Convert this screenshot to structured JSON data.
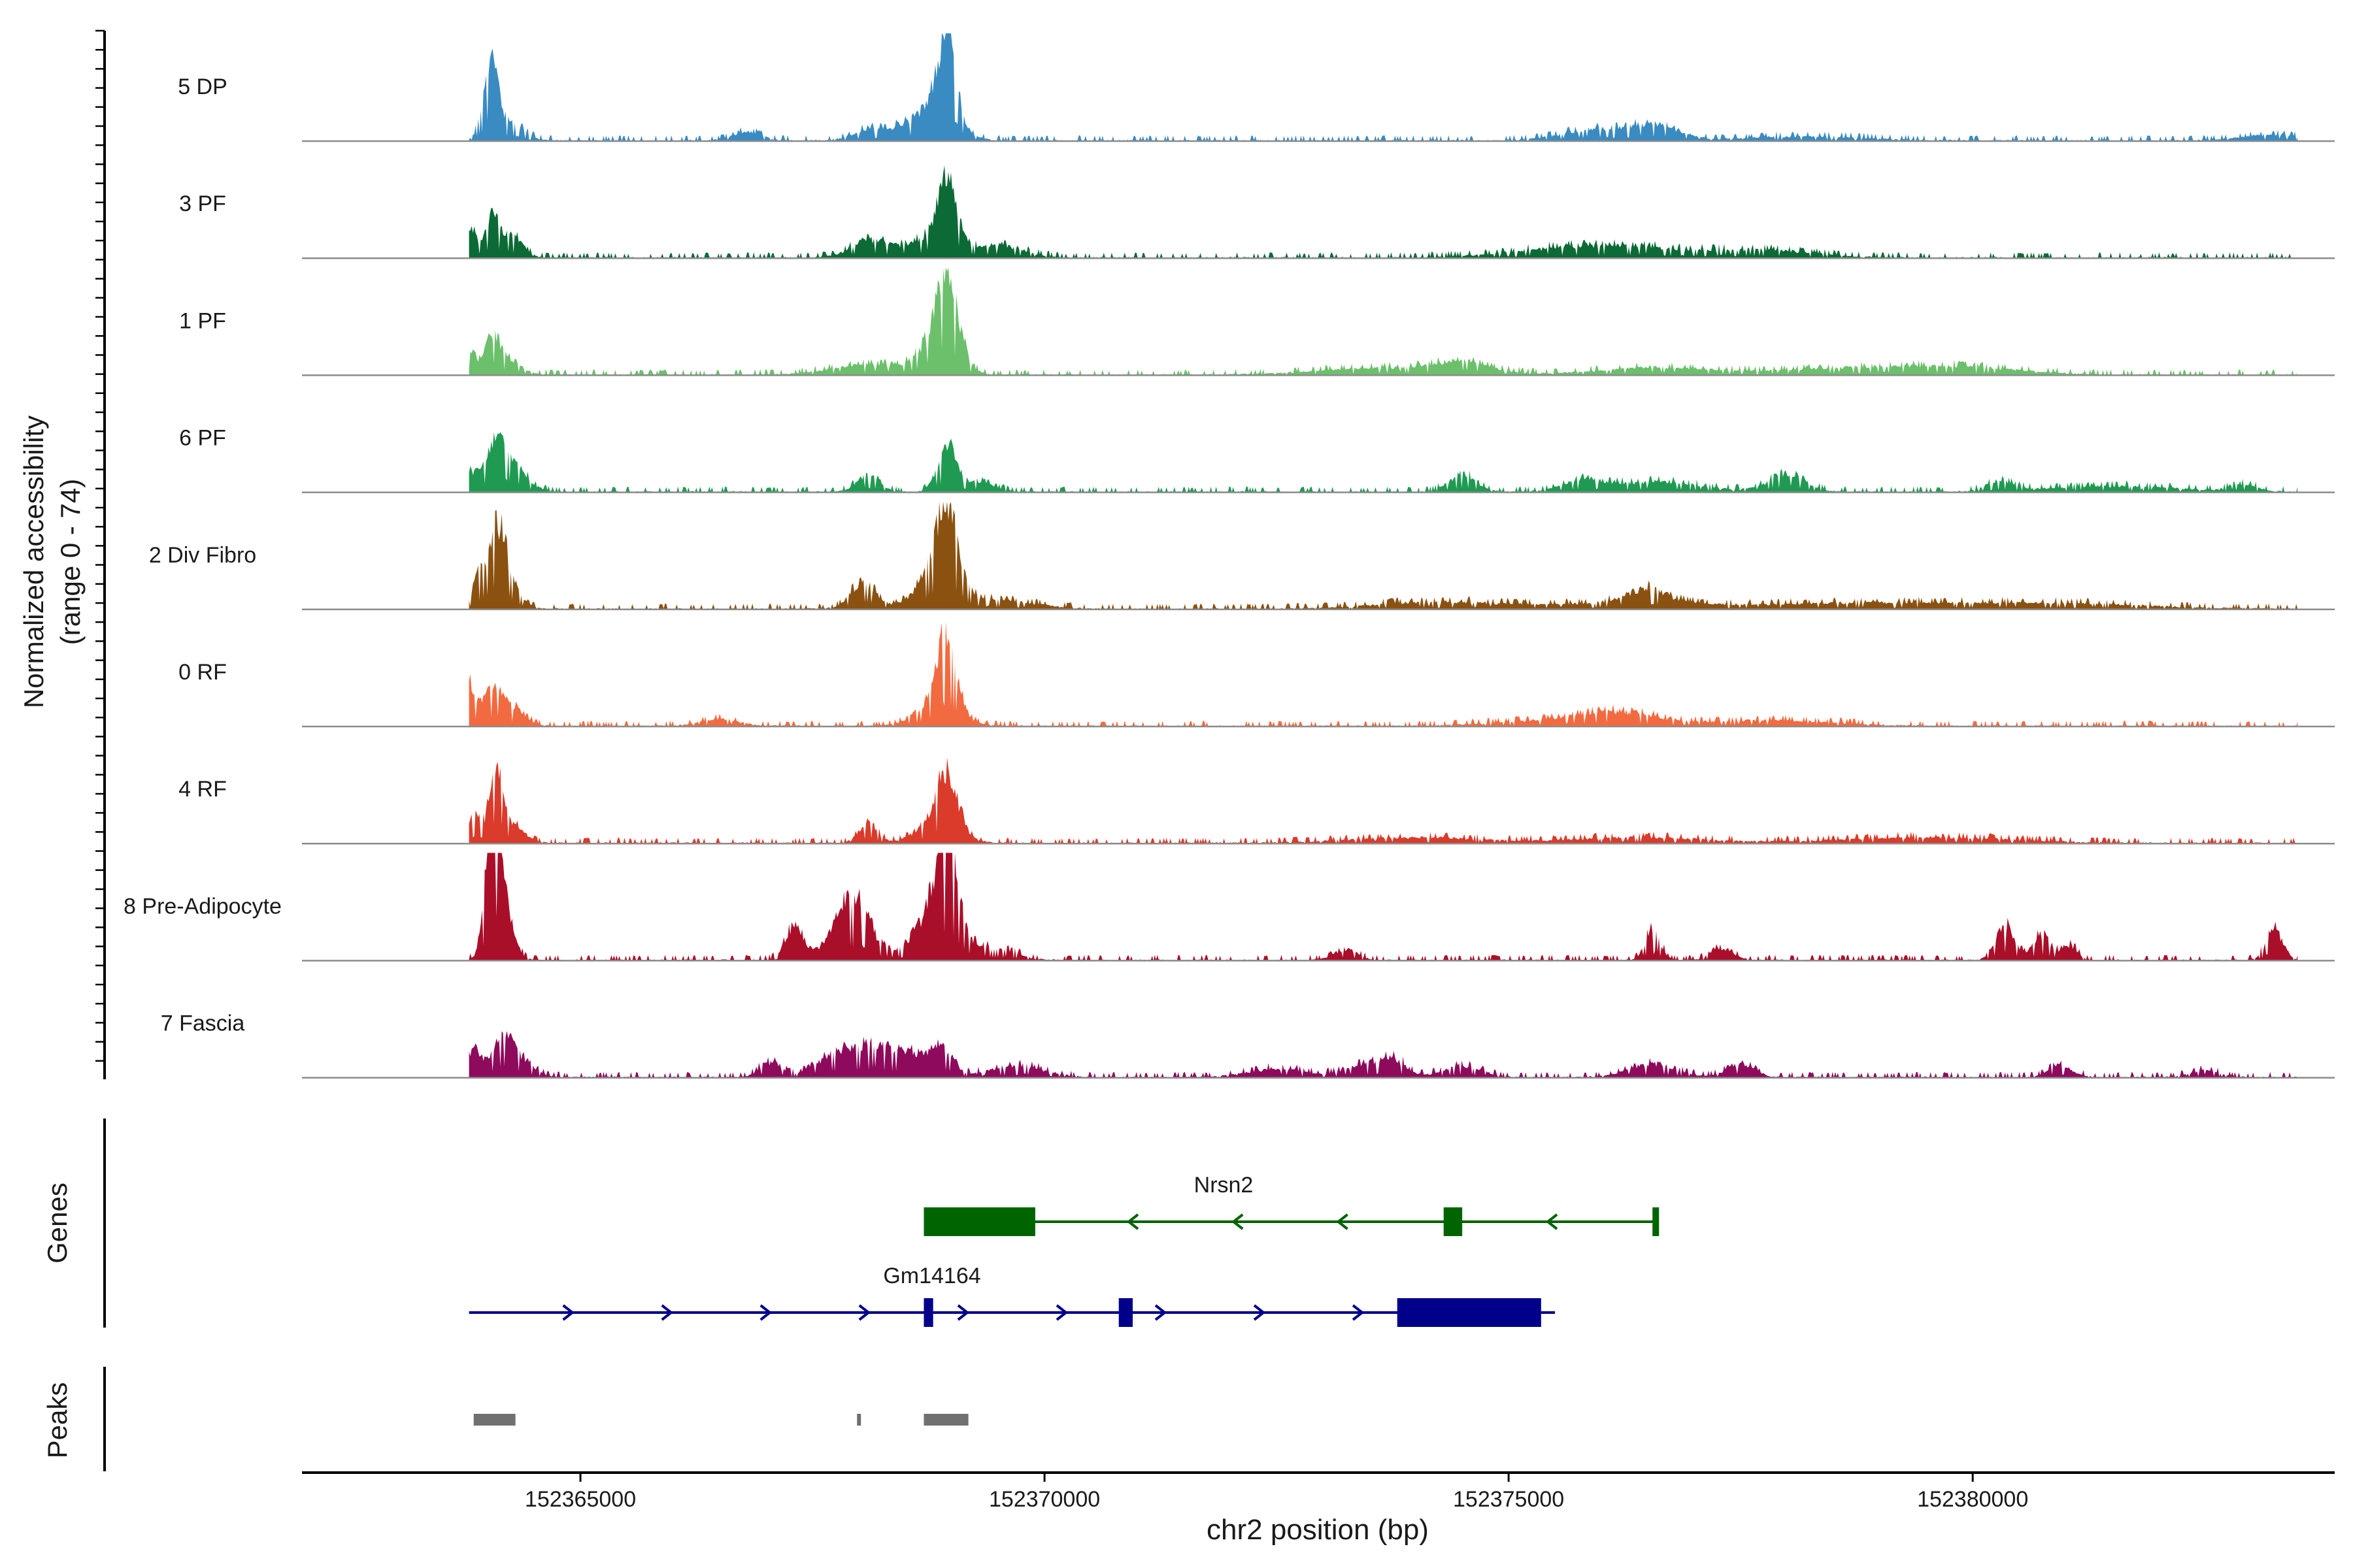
{
  "chart_data": {
    "type": "area",
    "chromosome": "chr2",
    "xlabel": "chr2 position (bp)",
    "ylabel": "Normalized accessibility",
    "ylabel_range": "(range 0 - 74)",
    "ylim": [
      0,
      74
    ],
    "xlim": [
      152362000,
      152383900
    ],
    "x_ticks": [
      152365000,
      152370000,
      152375000,
      152380000
    ],
    "x_tick_labels": [
      "152365000",
      "152370000",
      "152375000",
      "152380000"
    ],
    "tracks_label_genes": "Genes",
    "tracks_label_peaks": "Peaks",
    "series": [
      {
        "name": "5 DP",
        "color": "#3A8BC2",
        "peaks": [
          [
            152363800,
            152364400,
            0.0
          ],
          [
            152364030,
            80,
            54
          ],
          [
            152364250,
            140,
            12
          ],
          [
            152368600,
            200,
            8
          ],
          [
            152368950,
            90,
            58
          ],
          [
            152368870,
            200,
            22
          ],
          [
            152366800,
            150,
            6
          ],
          [
            152368150,
            200,
            8
          ],
          [
            152376000,
            400,
            8
          ],
          [
            152376600,
            250,
            9
          ],
          [
            152378200,
            600,
            3
          ],
          [
            152383200,
            300,
            4
          ]
        ]
      },
      {
        "name": "3 PF",
        "color": "#0B6A35",
        "peaks": [
          [
            152363820,
            60,
            22
          ],
          [
            152364050,
            70,
            28
          ],
          [
            152364250,
            120,
            16
          ],
          [
            152368150,
            220,
            12
          ],
          [
            152368950,
            100,
            40
          ],
          [
            152368850,
            250,
            16
          ],
          [
            152369550,
            250,
            8
          ],
          [
            152376300,
            700,
            6
          ],
          [
            152375600,
            700,
            4
          ],
          [
            152377800,
            500,
            5
          ]
        ]
      },
      {
        "name": "1 PF",
        "color": "#6CC06C",
        "peaks": [
          [
            152363820,
            60,
            16
          ],
          [
            152364050,
            80,
            28
          ],
          [
            152364250,
            120,
            10
          ],
          [
            152368950,
            120,
            52
          ],
          [
            152368850,
            200,
            20
          ],
          [
            152368100,
            400,
            7
          ],
          [
            152373700,
            700,
            5
          ],
          [
            152374500,
            300,
            7
          ],
          [
            152376600,
            600,
            5
          ],
          [
            152378800,
            800,
            5
          ],
          [
            152380000,
            600,
            4
          ]
        ]
      },
      {
        "name": "6 PF",
        "color": "#209A52",
        "peaks": [
          [
            152363820,
            80,
            12
          ],
          [
            152364100,
            120,
            32
          ],
          [
            152364300,
            150,
            14
          ],
          [
            152368100,
            120,
            12
          ],
          [
            152368950,
            100,
            35
          ],
          [
            152369300,
            150,
            7
          ],
          [
            152374500,
            150,
            12
          ],
          [
            152375800,
            200,
            8
          ],
          [
            152376600,
            500,
            7
          ],
          [
            152378000,
            200,
            12
          ],
          [
            152380300,
            150,
            7
          ],
          [
            152381500,
            700,
            4
          ],
          [
            152382900,
            150,
            5
          ]
        ]
      },
      {
        "name": "2 Div Fibro",
        "color": "#8A5110",
        "peaks": [
          [
            152363900,
            60,
            22
          ],
          [
            152364100,
            90,
            54
          ],
          [
            152364250,
            120,
            14
          ],
          [
            152368050,
            140,
            18
          ],
          [
            152368950,
            110,
            54
          ],
          [
            152368850,
            220,
            24
          ],
          [
            152369500,
            400,
            6
          ],
          [
            152374300,
            700,
            5
          ],
          [
            152376500,
            200,
            9
          ],
          [
            152376400,
            700,
            5
          ],
          [
            152378700,
            900,
            4
          ],
          [
            152380800,
            1000,
            4
          ]
        ]
      },
      {
        "name": "0 RF",
        "color": "#F26B40",
        "peaks": [
          [
            152363800,
            60,
            26
          ],
          [
            152364050,
            120,
            26
          ],
          [
            152364300,
            120,
            10
          ],
          [
            152368950,
            100,
            50
          ],
          [
            152368850,
            220,
            18
          ],
          [
            152366500,
            200,
            5
          ],
          [
            152376200,
            400,
            8
          ],
          [
            152375500,
            600,
            4
          ],
          [
            152377800,
            700,
            4
          ]
        ]
      },
      {
        "name": "4 RF",
        "color": "#DA3B2B",
        "peaks": [
          [
            152363850,
            70,
            20
          ],
          [
            152364100,
            80,
            50
          ],
          [
            152364300,
            120,
            10
          ],
          [
            152368100,
            100,
            14
          ],
          [
            152368950,
            110,
            38
          ],
          [
            152368850,
            220,
            14
          ],
          [
            152374000,
            700,
            4
          ],
          [
            152376400,
            700,
            4
          ],
          [
            152379500,
            900,
            4
          ]
        ]
      },
      {
        "name": "8 Pre-Adipocyte",
        "color": "#AA0F2A",
        "peaks": [
          [
            152364050,
            70,
            74
          ],
          [
            152364130,
            110,
            55
          ],
          [
            152367300,
            100,
            22
          ],
          [
            152367950,
            150,
            28
          ],
          [
            152367900,
            250,
            18
          ],
          [
            152368950,
            110,
            60
          ],
          [
            152368850,
            230,
            35
          ],
          [
            152369500,
            200,
            8
          ],
          [
            152373250,
            120,
            8
          ],
          [
            152376550,
            80,
            22
          ],
          [
            152377300,
            120,
            8
          ],
          [
            152380350,
            100,
            24
          ],
          [
            152380750,
            100,
            18
          ],
          [
            152381050,
            80,
            10
          ],
          [
            152383250,
            90,
            22
          ]
        ]
      },
      {
        "name": "7 Fascia",
        "color": "#8E0A5C",
        "peaks": [
          [
            152363850,
            60,
            20
          ],
          [
            152364150,
            120,
            25
          ],
          [
            152364350,
            150,
            10
          ],
          [
            152367050,
            120,
            10
          ],
          [
            152367700,
            200,
            12
          ],
          [
            152368150,
            250,
            22
          ],
          [
            152368900,
            120,
            17
          ],
          [
            152368600,
            200,
            12
          ],
          [
            152369700,
            300,
            8
          ],
          [
            152372500,
            300,
            6
          ],
          [
            152373400,
            200,
            8
          ],
          [
            152373750,
            150,
            12
          ],
          [
            152374500,
            200,
            8
          ],
          [
            152376550,
            250,
            9
          ],
          [
            152377500,
            150,
            9
          ],
          [
            152380950,
            120,
            9
          ],
          [
            152382500,
            150,
            5
          ]
        ]
      }
    ],
    "genes": [
      {
        "name": "Nrsn2",
        "strand": "-",
        "color": "#006400",
        "start": 152368700,
        "end": 152376600,
        "exons": [
          [
            152368700,
            152369900,
            "thick"
          ],
          [
            152374300,
            152374500,
            "thick"
          ],
          [
            152376550,
            152376600,
            "thin"
          ]
        ]
      },
      {
        "name": "Gm14164",
        "strand": "+",
        "color": "#00008B",
        "start": 152363800,
        "end": 152375500,
        "exons": [
          [
            152368700,
            152368800,
            "thick"
          ],
          [
            152370800,
            152370950,
            "thick"
          ],
          [
            152373800,
            152375350,
            "thick"
          ]
        ]
      }
    ],
    "peaks_track": [
      {
        "start": 152363850,
        "end": 152364300
      },
      {
        "start": 152367980,
        "end": 152368020
      },
      {
        "start": 152368700,
        "end": 152369180
      }
    ],
    "peak_color": "#707070"
  }
}
